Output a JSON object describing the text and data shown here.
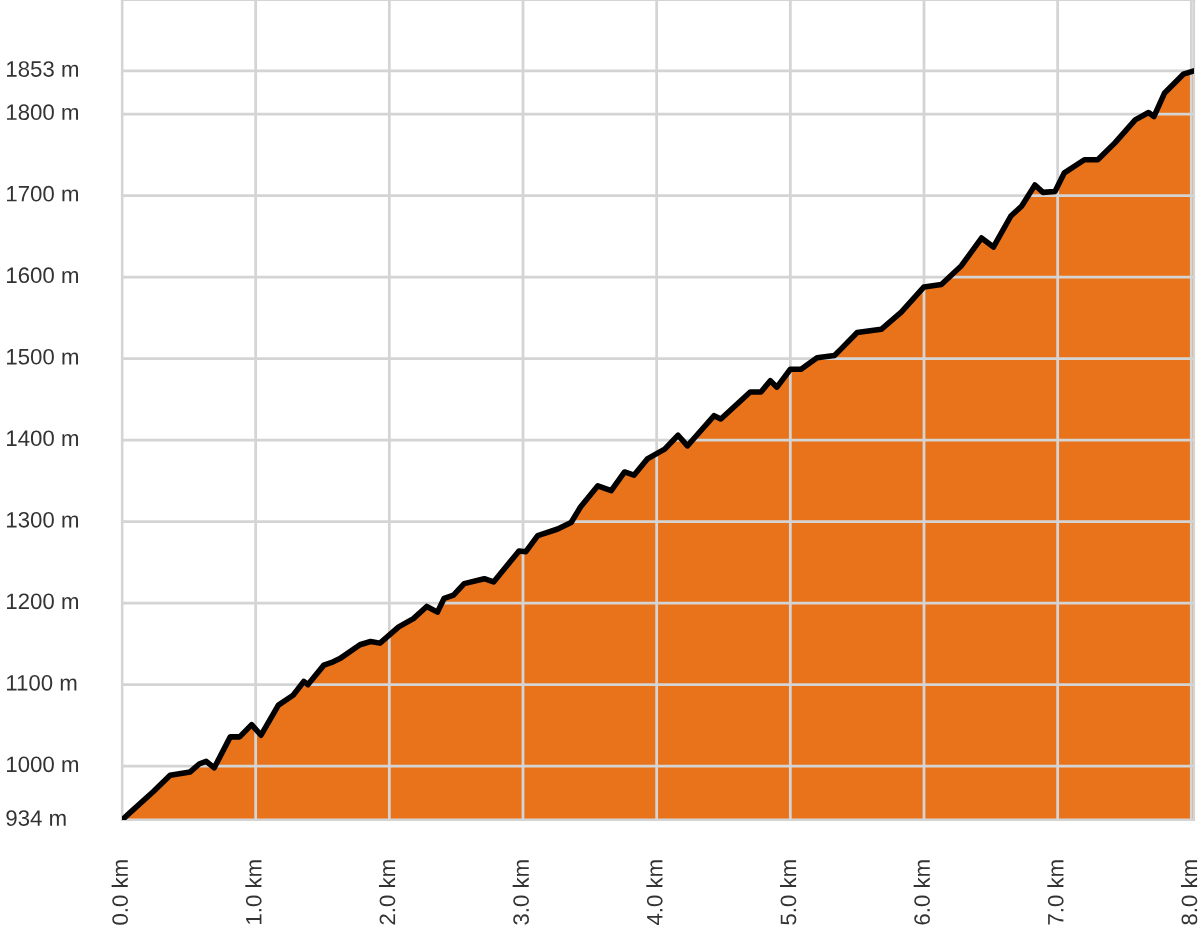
{
  "chart_data": {
    "type": "area",
    "x": [
      0,
      0.06,
      0.235,
      0.36,
      0.51,
      0.58,
      0.63,
      0.69,
      0.81,
      0.88,
      0.97,
      1.04,
      1.17,
      1.28,
      1.36,
      1.39,
      1.51,
      1.58,
      1.63,
      1.78,
      1.86,
      1.93,
      2.07,
      2.18,
      2.28,
      2.36,
      2.41,
      2.48,
      2.56,
      2.71,
      2.78,
      2.97,
      3.02,
      3.11,
      3.26,
      3.36,
      3.43,
      3.56,
      3.66,
      3.76,
      3.83,
      3.93,
      4.06,
      4.16,
      4.23,
      4.3,
      4.43,
      4.48,
      4.7,
      4.78,
      4.85,
      4.9,
      5.0,
      5.08,
      5.2,
      5.33,
      5.38,
      5.5,
      5.68,
      5.83,
      6.0,
      6.13,
      6.28,
      6.43,
      6.52,
      6.65,
      6.73,
      6.83,
      6.89,
      6.98,
      7.05,
      7.2,
      7.3,
      7.43,
      7.58,
      7.68,
      7.72,
      7.8,
      7.94,
      8.02
    ],
    "series": [
      {
        "color": "#e8731a",
        "values": [
          934,
          943,
          969,
          989,
          993,
          1003,
          1006,
          998,
          1036,
          1036,
          1051,
          1038,
          1075,
          1087,
          1104,
          1100,
          1124,
          1128,
          1132,
          1149,
          1153,
          1151,
          1171,
          1181,
          1196,
          1189,
          1206,
          1210,
          1224,
          1230,
          1226,
          1264,
          1263,
          1283,
          1291,
          1299,
          1318,
          1344,
          1338,
          1361,
          1357,
          1377,
          1389,
          1406,
          1393,
          1406,
          1430,
          1426,
          1459,
          1459,
          1473,
          1465,
          1487,
          1487,
          1501,
          1504,
          1512,
          1532,
          1536,
          1557,
          1588,
          1591,
          1614,
          1648,
          1637,
          1675,
          1687,
          1713,
          1704,
          1705,
          1728,
          1744,
          1744,
          1765,
          1793,
          1802,
          1797,
          1826,
          1849,
          1853
        ]
      }
    ],
    "xlim": [
      0,
      8.02
    ],
    "ylim": [
      934,
      1940
    ],
    "xticks": [
      {
        "value": 0,
        "label": "0.0 km"
      },
      {
        "value": 1,
        "label": "1.0 km"
      },
      {
        "value": 2,
        "label": "2.0 km"
      },
      {
        "value": 3,
        "label": "3.0 km"
      },
      {
        "value": 4,
        "label": "4.0 km"
      },
      {
        "value": 5,
        "label": "5.0 km"
      },
      {
        "value": 6,
        "label": "6.0 km"
      },
      {
        "value": 7,
        "label": "7.0 km"
      },
      {
        "value": 8,
        "label": "8.0 km"
      }
    ],
    "yticks": [
      {
        "value": 934,
        "label": "934 m"
      },
      {
        "value": 1000,
        "label": "1000 m"
      },
      {
        "value": 1100,
        "label": "1100 m"
      },
      {
        "value": 1200,
        "label": "1200 m"
      },
      {
        "value": 1300,
        "label": "1300 m"
      },
      {
        "value": 1400,
        "label": "1400 m"
      },
      {
        "value": 1500,
        "label": "1500 m"
      },
      {
        "value": 1600,
        "label": "1600 m"
      },
      {
        "value": 1700,
        "label": "1700 m"
      },
      {
        "value": 1800,
        "label": "1800 m"
      },
      {
        "value": 1853,
        "label": "1853 m"
      }
    ],
    "grid": true,
    "legend": false
  }
}
